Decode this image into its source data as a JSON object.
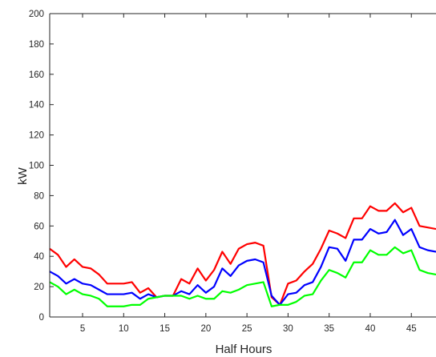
{
  "chart_data": {
    "type": "line",
    "title": "",
    "xlabel": "Half Hours",
    "ylabel": "kW",
    "xlim": [
      1,
      48
    ],
    "ylim": [
      0,
      200
    ],
    "xticks": [
      5,
      10,
      15,
      20,
      25,
      30,
      35,
      40,
      45
    ],
    "yticks": [
      0,
      20,
      40,
      60,
      80,
      100,
      120,
      140,
      160,
      180,
      200
    ],
    "grid": false,
    "x": [
      1,
      2,
      3,
      4,
      5,
      6,
      7,
      8,
      9,
      10,
      11,
      12,
      13,
      14,
      15,
      16,
      17,
      18,
      19,
      20,
      21,
      22,
      23,
      24,
      25,
      26,
      27,
      28,
      29,
      30,
      31,
      32,
      33,
      34,
      35,
      36,
      37,
      38,
      39,
      40,
      41,
      42,
      43,
      44,
      45,
      46,
      47,
      48
    ],
    "series": [
      {
        "color": "#ff0000",
        "values": [
          45,
          41,
          33,
          38,
          33,
          32,
          28,
          22,
          22,
          22,
          23,
          16,
          19,
          13,
          14,
          14,
          25,
          22,
          32,
          24,
          31,
          43,
          35,
          45,
          48,
          49,
          47,
          13,
          8,
          22,
          24,
          30,
          35,
          45,
          57,
          55,
          52,
          65,
          65,
          73,
          70,
          70,
          75,
          69,
          72,
          60,
          59,
          58
        ]
      },
      {
        "color": "#0000ff",
        "values": [
          30,
          27,
          22,
          25,
          22,
          21,
          18,
          15,
          15,
          15,
          16,
          12,
          15,
          13,
          14,
          14,
          17,
          15,
          21,
          16,
          20,
          32,
          27,
          34,
          37,
          38,
          36,
          14,
          8,
          15,
          16,
          21,
          23,
          33,
          46,
          45,
          37,
          51,
          51,
          58,
          55,
          56,
          64,
          54,
          58,
          46,
          44,
          43
        ]
      },
      {
        "color": "#00ff00",
        "values": [
          23,
          20,
          15,
          18,
          15,
          14,
          12,
          7,
          7,
          7,
          8,
          8,
          12,
          13,
          14,
          14,
          14,
          12,
          14,
          12,
          12,
          17,
          16,
          18,
          21,
          22,
          23,
          7,
          8,
          8,
          10,
          14,
          15,
          24,
          31,
          29,
          26,
          36,
          36,
          44,
          41,
          41,
          46,
          42,
          44,
          31,
          29,
          28
        ]
      }
    ]
  }
}
